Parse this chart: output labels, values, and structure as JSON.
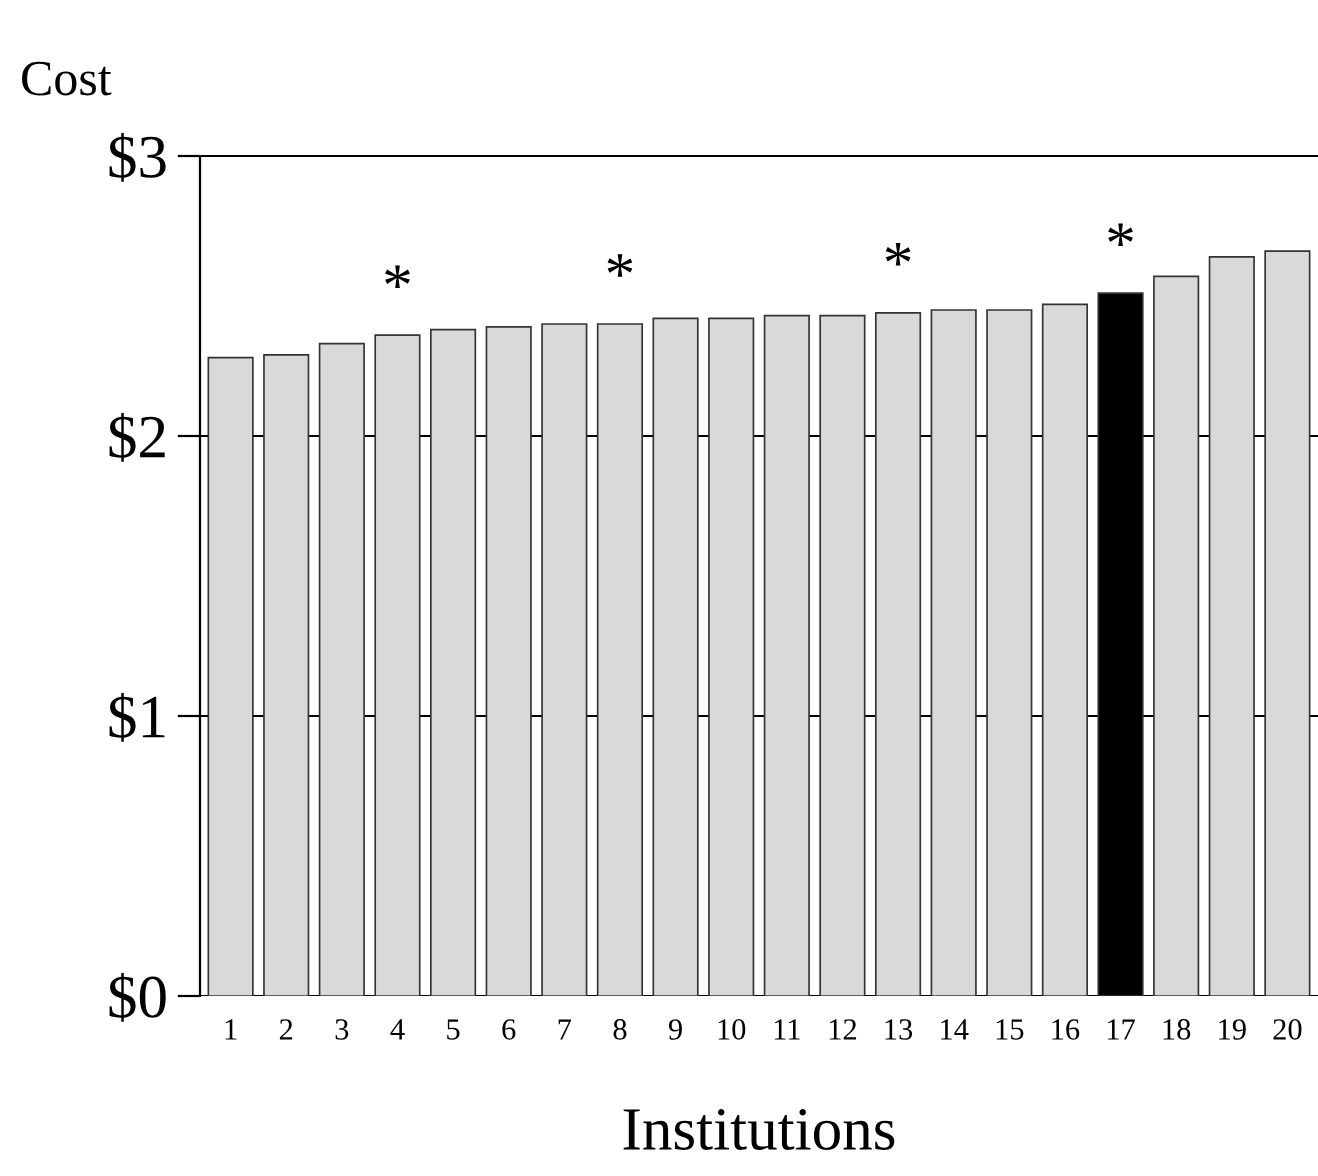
{
  "chart_data": {
    "type": "bar",
    "ylabel": "Cost",
    "xlabel": "Institutions",
    "categories": [
      "1",
      "2",
      "3",
      "4",
      "5",
      "6",
      "7",
      "8",
      "9",
      "10",
      "11",
      "12",
      "13",
      "14",
      "15",
      "16",
      "17",
      "18",
      "19",
      "20"
    ],
    "values": [
      2.28,
      2.29,
      2.33,
      2.36,
      2.38,
      2.39,
      2.4,
      2.4,
      2.42,
      2.42,
      2.43,
      2.43,
      2.44,
      2.45,
      2.45,
      2.47,
      2.51,
      2.57,
      2.64,
      2.66
    ],
    "colors": [
      "#d9d9d9",
      "#d9d9d9",
      "#d9d9d9",
      "#d9d9d9",
      "#d9d9d9",
      "#d9d9d9",
      "#d9d9d9",
      "#d9d9d9",
      "#d9d9d9",
      "#d9d9d9",
      "#d9d9d9",
      "#d9d9d9",
      "#d9d9d9",
      "#d9d9d9",
      "#d9d9d9",
      "#d9d9d9",
      "#000000",
      "#d9d9d9",
      "#d9d9d9",
      "#d9d9d9"
    ],
    "ylim": [
      0,
      3
    ],
    "yticks": [
      {
        "value": 0,
        "label": "$0"
      },
      {
        "value": 1,
        "label": "$1"
      },
      {
        "value": 2,
        "label": "$2"
      },
      {
        "value": 3,
        "label": "$3"
      }
    ],
    "grid": "y",
    "annotations": [
      {
        "text": "*",
        "x": "4",
        "y": 2.36
      },
      {
        "text": "*",
        "x": "8",
        "y": 2.4
      },
      {
        "text": "*",
        "x": "13",
        "y": 2.44
      },
      {
        "text": "*",
        "x": "17",
        "y": 2.51
      }
    ]
  }
}
